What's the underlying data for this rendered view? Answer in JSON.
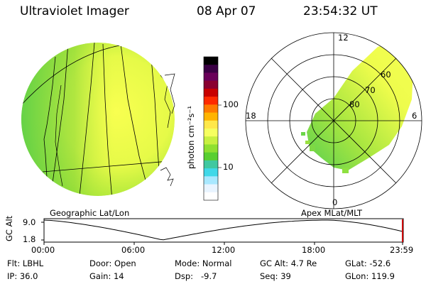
{
  "header": {
    "instrument": "Ultraviolet Imager",
    "date": "08 Apr 07",
    "time": "23:54:32 UT"
  },
  "colorbar": {
    "unit_label": "photon cm⁻²s⁻¹",
    "ticks": [
      {
        "label": "100",
        "value": 100
      },
      {
        "label": "10",
        "value": 10
      }
    ],
    "colors": [
      "#000000",
      "#3a0044",
      "#6a005a",
      "#8a0030",
      "#c80000",
      "#ff2a00",
      "#ff7a00",
      "#ffb400",
      "#ffe84a",
      "#f6ff60",
      "#c8f040",
      "#8fe030",
      "#58cf30",
      "#40c8a0",
      "#40d8e8",
      "#a8e8ff",
      "#e8f4ff",
      "#ffffff"
    ]
  },
  "geo_panel": {
    "label": "Geographic Lat/Lon"
  },
  "polar_panel": {
    "label": "Apex MLat/MLT",
    "mlt_labels": {
      "top": "12",
      "left": "18",
      "right": "6",
      "bottom": "0"
    },
    "lat_labels": [
      "60",
      "70",
      "80"
    ]
  },
  "timeline": {
    "axis_label": "GC Alt",
    "y_ticks": [
      "9.0",
      "1.8"
    ],
    "x_ticks": [
      "00:00",
      "06:00",
      "12:00",
      "18:00",
      "23:59"
    ],
    "current_marker_color": "#cc0000"
  },
  "status": {
    "flt": "Flt: LBHL",
    "ip": "IP: 36.0",
    "door": "Door: Open",
    "gain": "Gain: 14",
    "mode": "Mode: Normal",
    "dsp": "Dsp:   -9.7",
    "gc_alt": "GC Alt: 4.7 Re",
    "seq": "Seq: 39",
    "glat": "GLat: -52.6",
    "glon": "GLon: 119.9"
  }
}
